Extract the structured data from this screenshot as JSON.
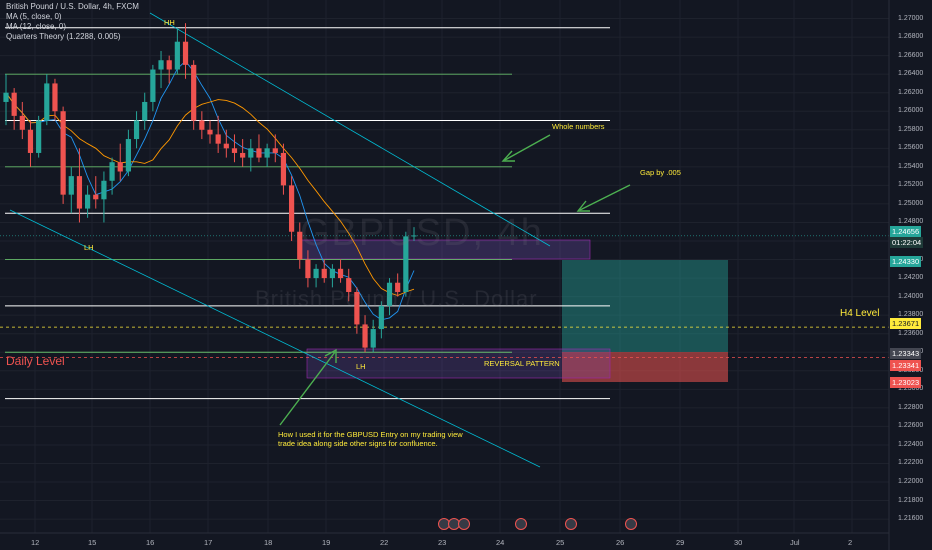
{
  "header": {
    "symbol_line": "British Pound / U.S. Dollar, 4h, FXCM",
    "indicators": [
      "MA (5, close, 0)",
      "MA (12, close, 0)",
      "Quarters Theory (1.2288, 0.005)"
    ]
  },
  "watermark": {
    "ticker": "GBPUSD, 4h",
    "name": "British Pound / U.S. Dollar"
  },
  "colors": {
    "up": "#26a69a",
    "down": "#ef5350",
    "annotation": "#ffeb3b",
    "arrow": "#4caf50",
    "trendline": "#00bcd4",
    "background": "#131722"
  },
  "annotations": {
    "hh": "HH",
    "lh_left": "LH",
    "lh_bottom": "LH",
    "whole_numbers": "Whole numbers",
    "gap": "Gap by .005",
    "reversal": "REVERSAL PATTERN",
    "note": "How I used it for the GBPUSD Entry on my trading view trade idea along side other signs for confluence.",
    "daily_level": "Daily Level",
    "h4_level": "H4 Level"
  },
  "price_badges": {
    "current": "1.24656",
    "countdown": "01:22:04",
    "target": "1.24330",
    "h4": "1.23671",
    "entry": "1.23343",
    "entry2": "1.23341",
    "stop": "1.23023"
  },
  "chart_data": {
    "type": "candlestick",
    "y_axis": {
      "ticks": [
        "1.27000",
        "1.26800",
        "1.26600",
        "1.26400",
        "1.26200",
        "1.26000",
        "1.25800",
        "1.25600",
        "1.25400",
        "1.25200",
        "1.25000",
        "1.24800",
        "1.24600",
        "1.24400",
        "1.24200",
        "1.24000",
        "1.23800",
        "1.23600",
        "1.23400",
        "1.23200",
        "1.23000",
        "1.22800",
        "1.22600",
        "1.22400",
        "1.22200",
        "1.22000",
        "1.21800",
        "1.21600"
      ],
      "range": [
        1.2145,
        1.272
      ]
    },
    "x_axis": {
      "ticks": [
        "12",
        "15",
        "16",
        "17",
        "18",
        "19",
        "22",
        "23",
        "24",
        "25",
        "26",
        "29",
        "30",
        "Jul",
        "2"
      ]
    },
    "horizontal_levels": {
      "white": [
        1.269,
        1.259,
        1.249,
        1.239,
        1.229
      ],
      "green": [
        1.264,
        1.254,
        1.244,
        1.234
      ]
    },
    "dashed_levels": {
      "h4": 1.23671,
      "entry": 1.23343
    },
    "candles": [
      {
        "o": 1.261,
        "h": 1.264,
        "l": 1.2585,
        "c": 1.262
      },
      {
        "o": 1.262,
        "h": 1.2625,
        "l": 1.258,
        "c": 1.2595
      },
      {
        "o": 1.2595,
        "h": 1.261,
        "l": 1.257,
        "c": 1.258
      },
      {
        "o": 1.258,
        "h": 1.259,
        "l": 1.254,
        "c": 1.2555
      },
      {
        "o": 1.2555,
        "h": 1.2595,
        "l": 1.255,
        "c": 1.259
      },
      {
        "o": 1.259,
        "h": 1.264,
        "l": 1.2585,
        "c": 1.263
      },
      {
        "o": 1.263,
        "h": 1.2635,
        "l": 1.259,
        "c": 1.26
      },
      {
        "o": 1.26,
        "h": 1.2605,
        "l": 1.25,
        "c": 1.251
      },
      {
        "o": 1.251,
        "h": 1.254,
        "l": 1.249,
        "c": 1.253
      },
      {
        "o": 1.253,
        "h": 1.256,
        "l": 1.248,
        "c": 1.2495
      },
      {
        "o": 1.2495,
        "h": 1.252,
        "l": 1.2485,
        "c": 1.251
      },
      {
        "o": 1.251,
        "h": 1.253,
        "l": 1.2495,
        "c": 1.2505
      },
      {
        "o": 1.2505,
        "h": 1.2535,
        "l": 1.248,
        "c": 1.2525
      },
      {
        "o": 1.2525,
        "h": 1.255,
        "l": 1.251,
        "c": 1.2545
      },
      {
        "o": 1.2545,
        "h": 1.2565,
        "l": 1.2525,
        "c": 1.2535
      },
      {
        "o": 1.2535,
        "h": 1.258,
        "l": 1.253,
        "c": 1.257
      },
      {
        "o": 1.257,
        "h": 1.26,
        "l": 1.256,
        "c": 1.259
      },
      {
        "o": 1.259,
        "h": 1.262,
        "l": 1.258,
        "c": 1.261
      },
      {
        "o": 1.261,
        "h": 1.265,
        "l": 1.26,
        "c": 1.2645
      },
      {
        "o": 1.2645,
        "h": 1.2665,
        "l": 1.2625,
        "c": 1.2655
      },
      {
        "o": 1.2655,
        "h": 1.266,
        "l": 1.263,
        "c": 1.2645
      },
      {
        "o": 1.2645,
        "h": 1.269,
        "l": 1.264,
        "c": 1.2675
      },
      {
        "o": 1.2675,
        "h": 1.2695,
        "l": 1.2635,
        "c": 1.265
      },
      {
        "o": 1.265,
        "h": 1.2655,
        "l": 1.258,
        "c": 1.259
      },
      {
        "o": 1.259,
        "h": 1.26,
        "l": 1.257,
        "c": 1.258
      },
      {
        "o": 1.258,
        "h": 1.259,
        "l": 1.2565,
        "c": 1.2575
      },
      {
        "o": 1.2575,
        "h": 1.2595,
        "l": 1.2555,
        "c": 1.2565
      },
      {
        "o": 1.2565,
        "h": 1.258,
        "l": 1.255,
        "c": 1.256
      },
      {
        "o": 1.256,
        "h": 1.2575,
        "l": 1.2545,
        "c": 1.2555
      },
      {
        "o": 1.2555,
        "h": 1.257,
        "l": 1.254,
        "c": 1.255
      },
      {
        "o": 1.255,
        "h": 1.257,
        "l": 1.2535,
        "c": 1.256
      },
      {
        "o": 1.256,
        "h": 1.2575,
        "l": 1.2545,
        "c": 1.255
      },
      {
        "o": 1.255,
        "h": 1.2565,
        "l": 1.254,
        "c": 1.256
      },
      {
        "o": 1.256,
        "h": 1.2575,
        "l": 1.2545,
        "c": 1.2555
      },
      {
        "o": 1.2555,
        "h": 1.2565,
        "l": 1.251,
        "c": 1.252
      },
      {
        "o": 1.252,
        "h": 1.253,
        "l": 1.246,
        "c": 1.247
      },
      {
        "o": 1.247,
        "h": 1.248,
        "l": 1.243,
        "c": 1.244
      },
      {
        "o": 1.244,
        "h": 1.245,
        "l": 1.241,
        "c": 1.242
      },
      {
        "o": 1.242,
        "h": 1.2435,
        "l": 1.241,
        "c": 1.243
      },
      {
        "o": 1.243,
        "h": 1.244,
        "l": 1.2415,
        "c": 1.242
      },
      {
        "o": 1.242,
        "h": 1.2435,
        "l": 1.241,
        "c": 1.243
      },
      {
        "o": 1.243,
        "h": 1.244,
        "l": 1.2415,
        "c": 1.242
      },
      {
        "o": 1.242,
        "h": 1.243,
        "l": 1.2395,
        "c": 1.2405
      },
      {
        "o": 1.2405,
        "h": 1.241,
        "l": 1.236,
        "c": 1.237
      },
      {
        "o": 1.237,
        "h": 1.238,
        "l": 1.234,
        "c": 1.2345
      },
      {
        "o": 1.2345,
        "h": 1.2375,
        "l": 1.234,
        "c": 1.2365
      },
      {
        "o": 1.2365,
        "h": 1.2395,
        "l": 1.2355,
        "c": 1.239
      },
      {
        "o": 1.239,
        "h": 1.242,
        "l": 1.238,
        "c": 1.2415
      },
      {
        "o": 1.2415,
        "h": 1.2425,
        "l": 1.24,
        "c": 1.2405
      },
      {
        "o": 1.2405,
        "h": 1.247,
        "l": 1.24,
        "c": 1.2465
      },
      {
        "o": 1.2465,
        "h": 1.2475,
        "l": 1.246,
        "c": 1.2466
      }
    ]
  }
}
